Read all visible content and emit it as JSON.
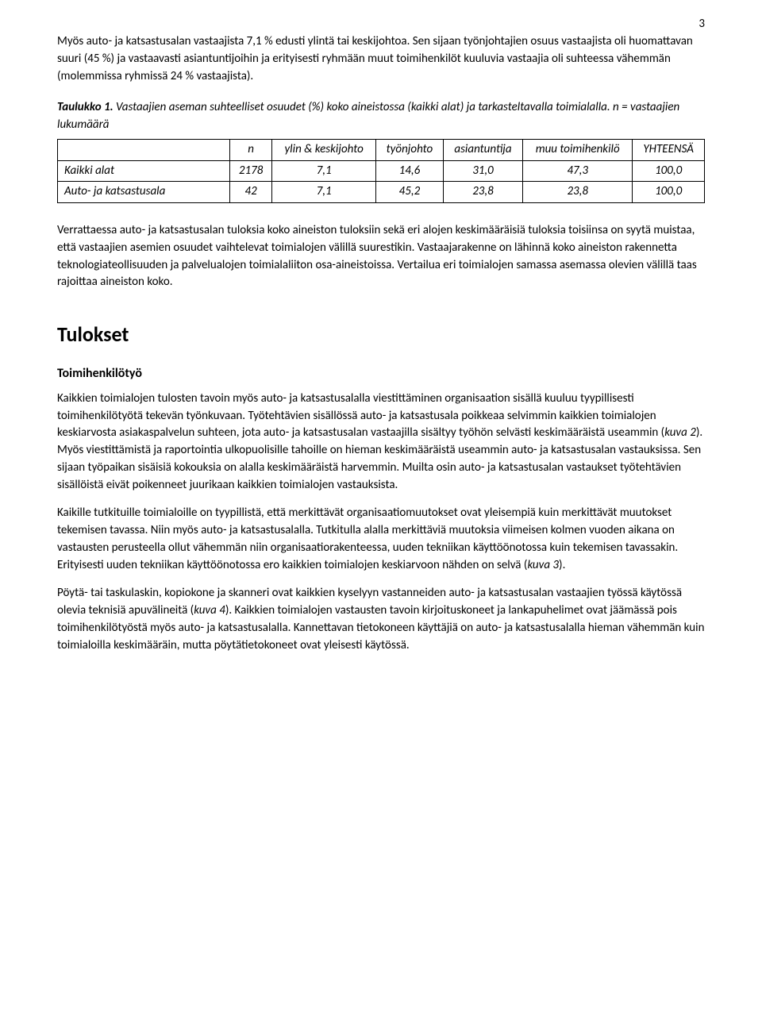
{
  "page_number": "3",
  "para_intro": "Myös auto- ja katsastusalan vastaajista 7,1 % edusti ylintä tai keskijohtoa. Sen sijaan työnjohtajien osuus vastaajista oli huomattavan suuri (45 %) ja vastaavasti asiantuntijoihin ja erityisesti ryhmään muut toimihenkilöt kuuluvia vastaajia oli suhteessa vähemmän (molemmissa ryhmissä 24 % vastaajista).",
  "table_caption_prefix": "Taulukko 1.",
  "table_caption_body": " Vastaajien aseman suhteelliset osuudet (%) koko aineistossa (kaikki alat) ja tarkasteltavalla toimialalla. n = vastaajien lukumäärä",
  "table": {
    "columns": [
      "",
      "n",
      "ylin & keskijohto",
      "työnjohto",
      "asiantuntija",
      "muu toimihenkilö",
      "YHTEENSÄ"
    ],
    "rows": [
      [
        "Kaikki alat",
        "2178",
        "7,1",
        "14,6",
        "31,0",
        "47,3",
        "100,0"
      ],
      [
        "Auto- ja katsastusala",
        "42",
        "7,1",
        "45,2",
        "23,8",
        "23,8",
        "100,0"
      ]
    ],
    "col_widths": [
      "200px",
      "70px",
      "110px",
      "100px",
      "120px",
      "130px",
      "100px"
    ],
    "border_color": "#000000",
    "background_color": "#ffffff"
  },
  "para_compare": "Verrattaessa auto- ja katsastusalan tuloksia koko aineiston tuloksiin sekä eri alojen keskimääräisiä tuloksia toisiinsa on syytä muistaa, että vastaajien asemien osuudet vaihtelevat toimialojen välillä suurestikin. Vastaajarakenne on lähinnä koko aineiston rakennetta teknologiateollisuuden ja palvelualojen toimialaliiton osa-aineistoissa. Vertailua eri toimialojen samassa asemassa olevien välillä taas rajoittaa aineiston koko.",
  "heading_results": "Tulokset",
  "subheading_work": "Toimihenkilötyö",
  "para_results_1a": "Kaikkien toimialojen tulosten tavoin myös auto- ja katsastusalalla viestittäminen organisaation sisällä kuuluu tyypillisesti toimihenkilötyötä tekevän työnkuvaan. Työtehtävien sisällössä auto- ja katsastusala poikkeaa selvimmin kaikkien toimialojen keskiarvosta asiakaspalvelun suhteen, jota auto- ja katsastusalan vastaajilla sisältyy työhön selvästi keskimääräistä useammin (",
  "para_results_1_ref": "kuva 2",
  "para_results_1b": "). Myös viestittämistä ja raportointia ulkopuolisille tahoille on hieman keskimääräistä useammin auto- ja katsastusalan vastauksissa. Sen sijaan työpaikan sisäisiä kokouksia on alalla keskimääräistä harvemmin. Muilta osin auto- ja katsastusalan vastaukset työtehtävien sisällöistä eivät poikenneet juurikaan kaikkien toimialojen vastauksista.",
  "para_results_2a": "Kaikille tutkituille toimialoille on tyypillistä, että merkittävät organisaatiomuutokset ovat yleisempiä kuin merkittävät muutokset tekemisen tavassa. Niin myös auto- ja katsastusalalla. Tutkitulla alalla merkittäviä muutoksia viimeisen kolmen vuoden aikana on vastausten perusteella ollut vähemmän niin organisaatiorakenteessa, uuden tekniikan käyttöönotossa kuin tekemisen tavassakin. Erityisesti uuden tekniikan käyttöönotossa ero kaikkien toimialojen keskiarvoon nähden on selvä (",
  "para_results_2_ref": "kuva 3",
  "para_results_2b": ").",
  "para_results_3a": "Pöytä- tai taskulaskin, kopiokone ja skanneri ovat kaikkien kyselyyn vastanneiden auto- ja katsastusalan vastaajien työssä käytössä olevia teknisiä apuvälineitä (",
  "para_results_3_ref": "kuva 4",
  "para_results_3b": "). Kaikkien toimialojen vastausten tavoin kirjoituskoneet ja lankapuhelimet ovat jäämässä pois toimihenkilötyöstä myös auto- ja katsastusalalla. Kannettavan tietokoneen käyttäjiä on auto- ja katsastusalalla hieman vähemmän kuin toimialoilla keskimääräin, mutta pöytätietokoneet ovat yleisesti käytössä."
}
